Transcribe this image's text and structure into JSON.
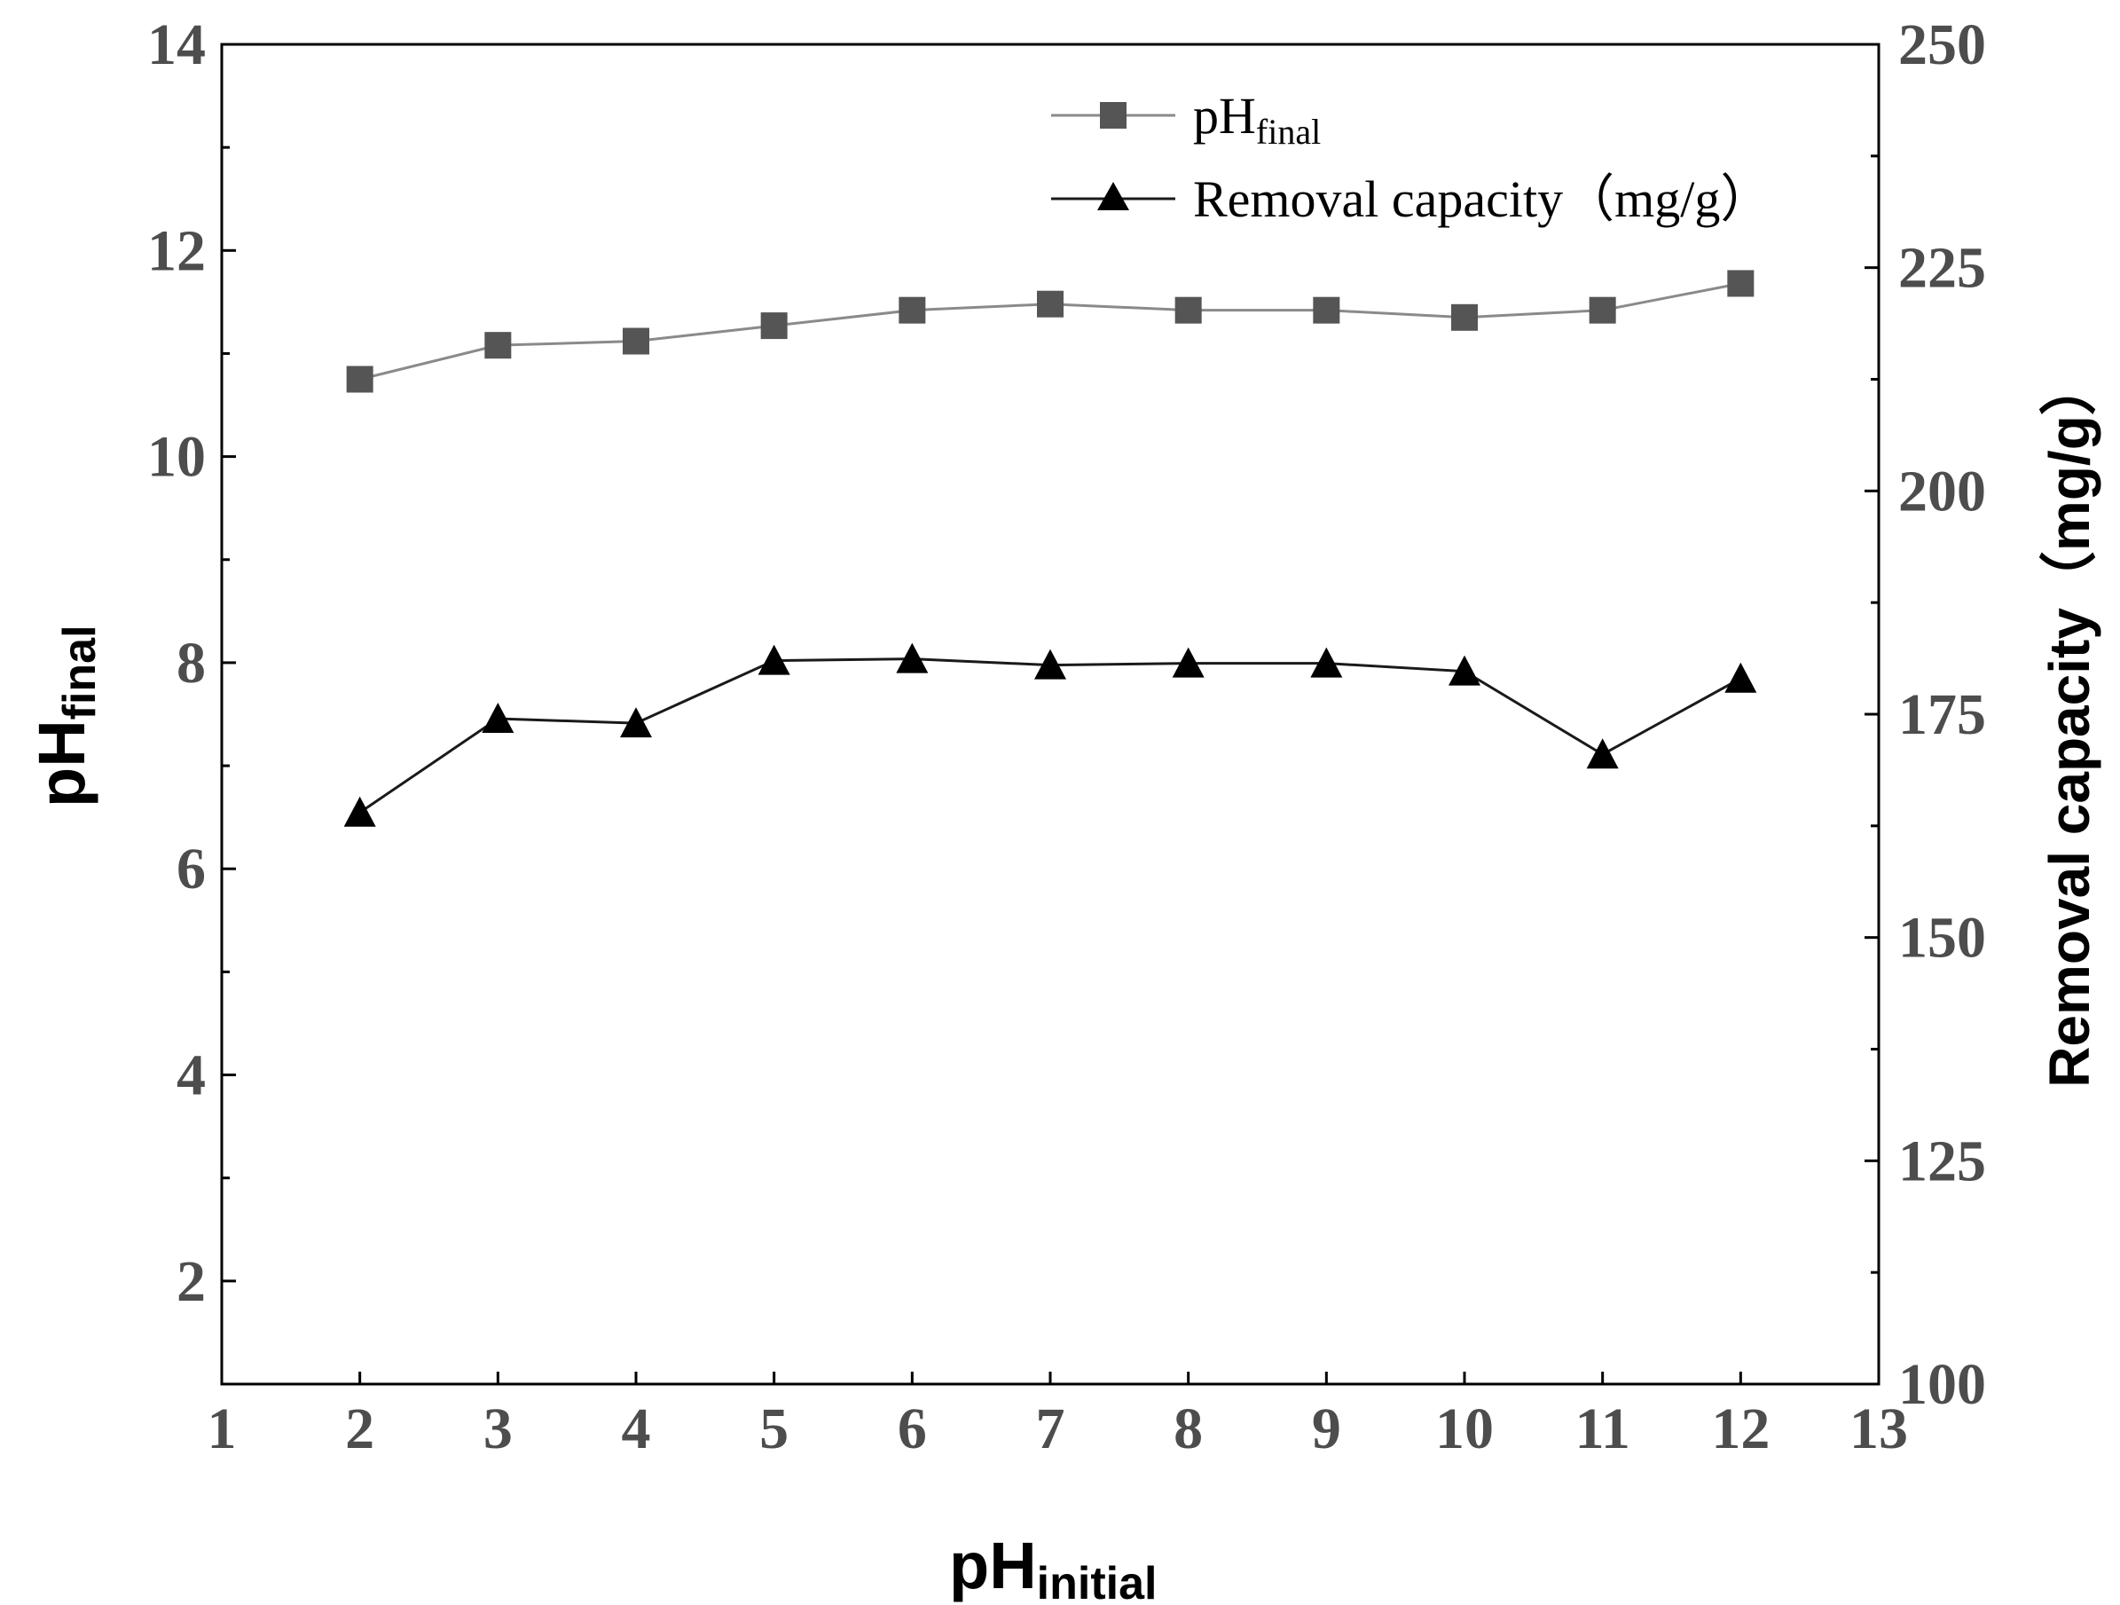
{
  "chart_data": {
    "type": "line",
    "x": [
      2,
      3,
      4,
      5,
      6,
      7,
      8,
      9,
      10,
      11,
      12
    ],
    "xlabel": {
      "main": "pH",
      "sub": "initial"
    },
    "ylabel_left": {
      "main": "pH",
      "sub": "final"
    },
    "ylabel_right": "Removal capacity（mg/g）",
    "xlim": [
      1,
      13
    ],
    "ylim_left": [
      1,
      14
    ],
    "ylim_right": [
      100,
      250
    ],
    "xticks": [
      "1",
      "2",
      "3",
      "4",
      "5",
      "6",
      "7",
      "8",
      "9",
      "10",
      "11",
      "12",
      "13"
    ],
    "yticks_left": [
      "2",
      "4",
      "6",
      "8",
      "10",
      "12",
      "14"
    ],
    "yticks_right": [
      "100",
      "125",
      "150",
      "175",
      "200",
      "225",
      "250"
    ],
    "series": [
      {
        "name": "pH_final",
        "legend_main": "pH",
        "legend_sub": "final",
        "axis": "left",
        "marker": "square",
        "color": "#555555",
        "line_color": "#8a8a8a",
        "values": [
          10.75,
          11.08,
          11.12,
          11.27,
          11.42,
          11.48,
          11.42,
          11.42,
          11.35,
          11.42,
          11.68
        ]
      },
      {
        "name": "Removal capacity",
        "legend_main": "Removal capacity（mg/g）",
        "legend_sub": "",
        "axis": "right",
        "marker": "triangle",
        "color": "#000000",
        "line_color": "#1a1a1a",
        "values": [
          164,
          174.5,
          174,
          181,
          181.2,
          180.5,
          180.7,
          180.7,
          179.8,
          170.5,
          179
        ]
      }
    ]
  }
}
